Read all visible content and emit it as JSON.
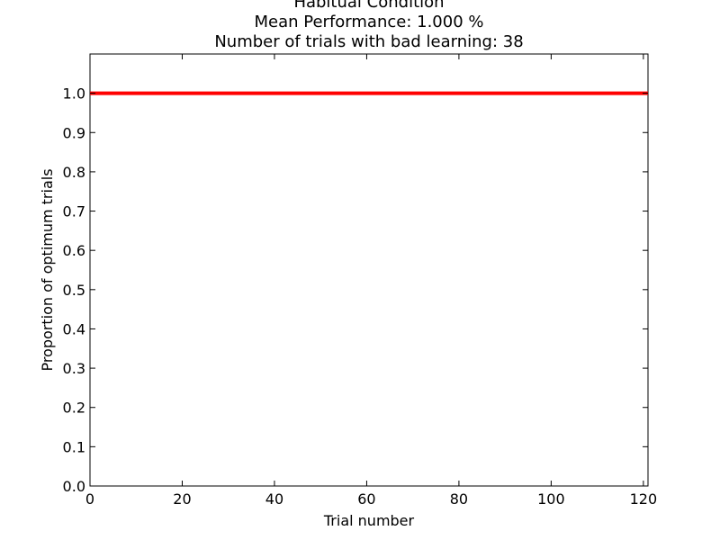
{
  "chart_data": {
    "type": "line",
    "title_lines": [
      "Habitual Condition",
      "Mean Performance: 1.000 %",
      "Number of trials with bad learning: 38"
    ],
    "xlabel": "Trial number",
    "ylabel": "Proportion of optimum trials",
    "xlim": [
      0,
      121
    ],
    "ylim": [
      0,
      1.1
    ],
    "x_ticks": [
      0,
      20,
      40,
      60,
      80,
      100,
      120
    ],
    "y_ticks": [
      0.0,
      0.1,
      0.2,
      0.3,
      0.4,
      0.5,
      0.6,
      0.7,
      0.8,
      0.9,
      1.0
    ],
    "x_tick_labels": [
      "0",
      "20",
      "40",
      "60",
      "80",
      "100",
      "120"
    ],
    "y_tick_labels": [
      "0.0",
      "0.1",
      "0.2",
      "0.3",
      "0.4",
      "0.5",
      "0.6",
      "0.7",
      "0.8",
      "0.9",
      "1.0"
    ],
    "grid": false,
    "series": [
      {
        "color": "#ff0000",
        "x": [
          0,
          121
        ],
        "y": [
          1.0,
          1.0
        ]
      }
    ]
  }
}
